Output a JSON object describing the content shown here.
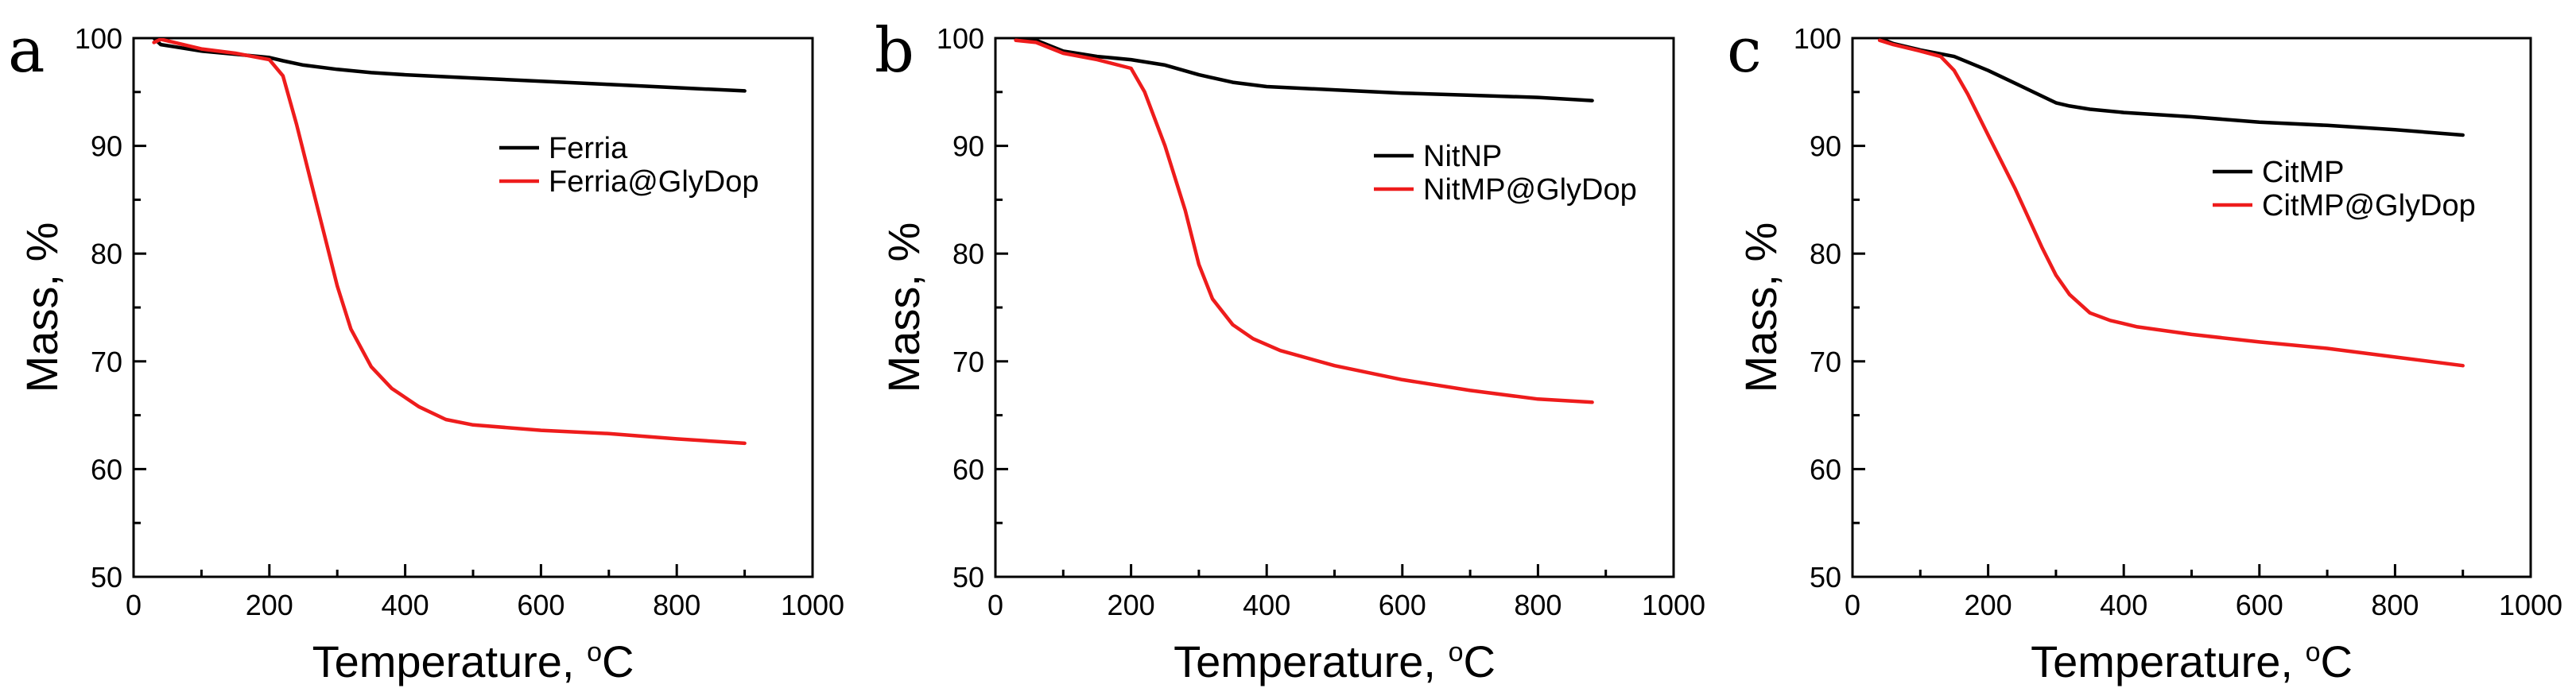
{
  "chart_data": [
    {
      "type": "line",
      "panel": "a",
      "xlabel_main": "Temperature, ",
      "xlabel_sup": "o",
      "xlabel_unit": "C",
      "ylabel": "Mass, %",
      "xlim": [
        0,
        1000
      ],
      "ylim": [
        50,
        100
      ],
      "xticks": [
        0,
        200,
        400,
        600,
        800,
        1000
      ],
      "yticks": [
        50,
        60,
        70,
        80,
        90,
        100
      ],
      "legend_position": "right-center",
      "series": [
        {
          "name": "Ferria",
          "color": "#000000",
          "x": [
            30,
            40,
            60,
            100,
            150,
            200,
            220,
            250,
            300,
            350,
            400,
            500,
            600,
            700,
            800,
            900
          ],
          "y": [
            100,
            99.4,
            99.2,
            98.8,
            98.5,
            98.2,
            97.9,
            97.5,
            97.1,
            96.8,
            96.6,
            96.3,
            96.0,
            95.7,
            95.4,
            95.1
          ]
        },
        {
          "name": "Ferria@GlyDop",
          "color": "#ee1c1c",
          "x": [
            30,
            40,
            60,
            100,
            150,
            200,
            220,
            240,
            260,
            280,
            300,
            320,
            350,
            380,
            420,
            460,
            500,
            600,
            700,
            800,
            900
          ],
          "y": [
            99.6,
            99.9,
            99.6,
            99.0,
            98.6,
            98.0,
            96.5,
            92.0,
            87.0,
            82.0,
            77.0,
            73.0,
            69.5,
            67.5,
            65.8,
            64.6,
            64.1,
            63.6,
            63.3,
            62.8,
            62.4
          ]
        }
      ]
    },
    {
      "type": "line",
      "panel": "b",
      "xlabel_main": "Temperature, ",
      "xlabel_sup": "o",
      "xlabel_unit": "C",
      "ylabel": "Mass, %",
      "xlim": [
        0,
        1000
      ],
      "ylim": [
        50,
        100
      ],
      "xticks": [
        0,
        200,
        400,
        600,
        800,
        1000
      ],
      "yticks": [
        50,
        60,
        70,
        80,
        90,
        100
      ],
      "legend_position": "right-center",
      "series": [
        {
          "name": "NitNP",
          "color": "#000000",
          "x": [
            30,
            60,
            100,
            150,
            200,
            250,
            300,
            350,
            400,
            500,
            600,
            700,
            800,
            880
          ],
          "y": [
            100,
            99.8,
            98.8,
            98.3,
            98.0,
            97.5,
            96.6,
            95.9,
            95.5,
            95.2,
            94.9,
            94.7,
            94.5,
            94.2
          ]
        },
        {
          "name": "NitMP@GlyDop",
          "color": "#ee1c1c",
          "x": [
            30,
            60,
            100,
            150,
            200,
            220,
            250,
            280,
            300,
            320,
            350,
            380,
            420,
            500,
            600,
            700,
            800,
            880
          ],
          "y": [
            99.8,
            99.6,
            98.6,
            98.0,
            97.2,
            95.0,
            90.0,
            84.0,
            79.0,
            75.8,
            73.4,
            72.1,
            71.0,
            69.6,
            68.3,
            67.3,
            66.5,
            66.2
          ]
        }
      ]
    },
    {
      "type": "line",
      "panel": "c",
      "xlabel_main": "Temperature, ",
      "xlabel_sup": "o",
      "xlabel_unit": "C",
      "ylabel": "Mass, %",
      "xlim": [
        0,
        1000
      ],
      "ylim": [
        50,
        100
      ],
      "xticks": [
        0,
        200,
        400,
        600,
        800,
        1000
      ],
      "yticks": [
        50,
        60,
        70,
        80,
        90,
        100
      ],
      "legend_position": "right-center",
      "series": [
        {
          "name": "CitMP",
          "color": "#000000",
          "x": [
            40,
            60,
            100,
            150,
            200,
            250,
            300,
            320,
            350,
            400,
            500,
            600,
            700,
            800,
            900
          ],
          "y": [
            100,
            99.5,
            98.9,
            98.3,
            97.0,
            95.5,
            94.0,
            93.7,
            93.4,
            93.1,
            92.7,
            92.2,
            91.9,
            91.5,
            91.0
          ]
        },
        {
          "name": "CitMP@GlyDop",
          "color": "#ee1c1c",
          "x": [
            40,
            60,
            100,
            130,
            150,
            170,
            200,
            240,
            280,
            300,
            320,
            350,
            380,
            420,
            500,
            600,
            700,
            800,
            900
          ],
          "y": [
            99.8,
            99.4,
            98.8,
            98.3,
            97.0,
            94.8,
            91.0,
            86.0,
            80.5,
            78.0,
            76.2,
            74.5,
            73.8,
            73.2,
            72.5,
            71.8,
            71.2,
            70.4,
            69.6
          ]
        }
      ]
    }
  ]
}
